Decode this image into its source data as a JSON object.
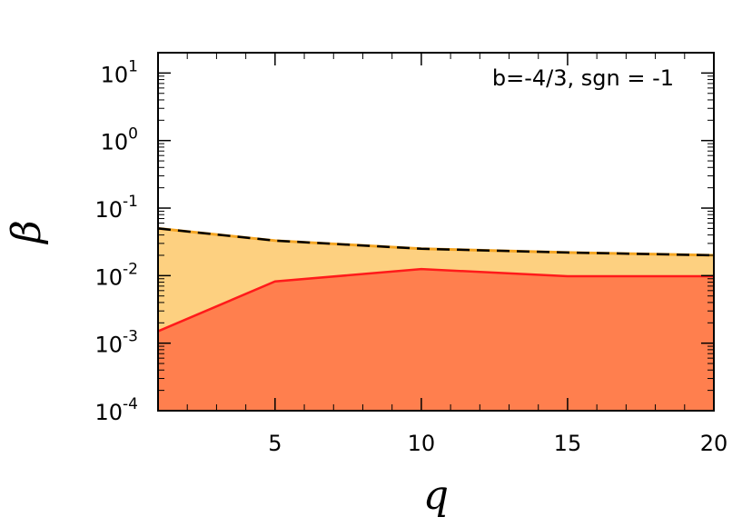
{
  "chart_data": {
    "type": "area",
    "xlabel": "q",
    "ylabel": "β",
    "annotation": "b=-4/3, sgn = -1",
    "xlim": [
      1,
      20
    ],
    "ylim": [
      0.0001,
      20
    ],
    "yscale": "log",
    "x_ticks": [
      5,
      10,
      15,
      20
    ],
    "x_tick_labels": [
      "5",
      "10",
      "15",
      "20"
    ],
    "y_ticks": [
      {
        "value": 0.0001,
        "base": "10",
        "exp": "-4"
      },
      {
        "value": 0.001,
        "base": "10",
        "exp": "-3"
      },
      {
        "value": 0.01,
        "base": "10",
        "exp": "-2"
      },
      {
        "value": 0.1,
        "base": "10",
        "exp": "-1"
      },
      {
        "value": 1,
        "base": "10",
        "exp": "0"
      },
      {
        "value": 10,
        "base": "10",
        "exp": "1"
      }
    ],
    "grid": false,
    "legend": "none",
    "series": [
      {
        "x": [
          1,
          5,
          10,
          15,
          20
        ],
        "values": [
          0.05,
          0.033,
          0.025,
          0.022,
          0.02
        ],
        "line_color": "#000000",
        "line_dash": "dashed",
        "fill_color": "#fdd080",
        "outline_color": "#f5a623"
      },
      {
        "x": [
          1,
          5,
          10,
          15,
          20
        ],
        "values": [
          0.0015,
          0.0082,
          0.0125,
          0.0098,
          0.0098
        ],
        "line_color": "#ff1a1a",
        "fill_color": "#ff7f4e"
      }
    ]
  }
}
